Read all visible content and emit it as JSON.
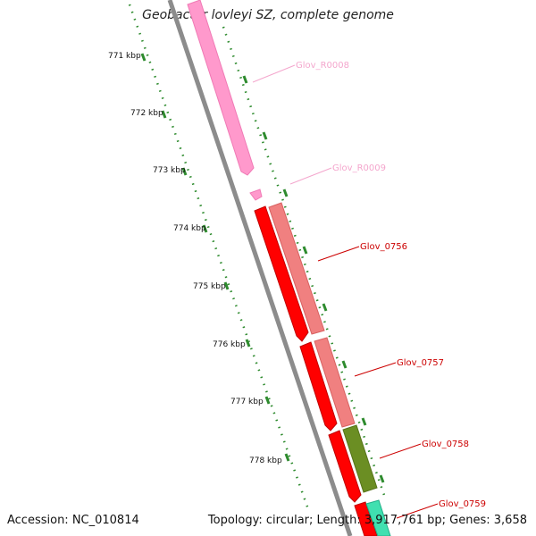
{
  "title": "Geobacter lovleyi SZ, complete genome",
  "accession": "Accession: NC_010814",
  "topology": "Topology: circular; Length: 3,917,761 bp; Genes: 3,658",
  "kbp_labels": [
    "771 kbp",
    "772 kbp",
    "773 kbp",
    "774 kbp",
    "775 kbp",
    "776 kbp",
    "777 kbp",
    "778 kbp"
  ],
  "genes": [
    {
      "name": "Glov_R0008",
      "color": "#f4a6cd"
    },
    {
      "name": "Glov_R0009",
      "color": "#f4a6cd"
    },
    {
      "name": "Glov_0756",
      "color": "#cc0000"
    },
    {
      "name": "Glov_0757",
      "color": "#cc0000"
    },
    {
      "name": "Glov_0758",
      "color": "#cc0000"
    },
    {
      "name": "Glov_0759",
      "color": "#cc0000"
    }
  ],
  "colors": {
    "backbone": "#8c8c8c",
    "ticks": "#2e8b2e",
    "rna_feature": "#ff99cc",
    "cds_feature": "#ff0000",
    "cds_shadow": "#f08080",
    "olive_feature": "#6b8e23",
    "teal_feature": "#40e0b0"
  }
}
